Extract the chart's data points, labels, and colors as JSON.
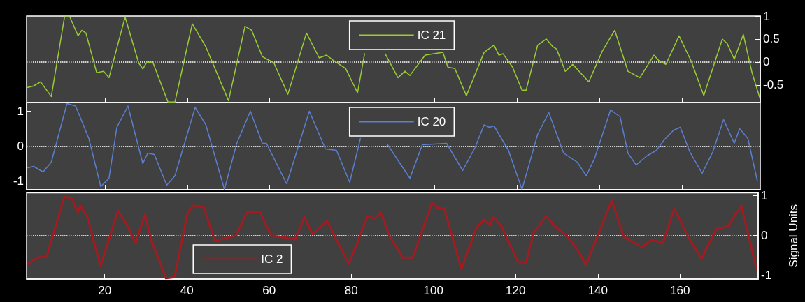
{
  "chart_data": [
    {
      "type": "line",
      "xlim": [
        1,
        179
      ],
      "xticks": [
        20,
        40,
        60,
        80,
        100,
        120,
        140,
        160
      ],
      "y2lim": [
        -0.88,
        1
      ],
      "y2ticks": [
        -0.5,
        0,
        0.5,
        1
      ],
      "tick_labels": "y",
      "legend": "top",
      "ref_lines": [
        {
          "axis": "y2",
          "value": 0,
          "color": "#ffffff",
          "line_style": "dotted"
        }
      ],
      "series": [
        {
          "name": "IC 21",
          "color": "#99cc33",
          "axis": "y2",
          "x": [
            1.3,
            2.7,
            4.4,
            7,
            10.2,
            11.5,
            13.5,
            14.4,
            15.4,
            18,
            19.7,
            21,
            24.9,
            28.2,
            29.2,
            30.2,
            31.7,
            35.3,
            37,
            41.2,
            44.5,
            50,
            54,
            55.6,
            58.2,
            61,
            64.4,
            68.9,
            72,
            73.8,
            75.5,
            78.4,
            81.3,
            83,
            85.5,
            88,
            91.1,
            92.8,
            94,
            97.7,
            102,
            103.2,
            104.9,
            107.7,
            112,
            114.4,
            115.6,
            116.6,
            118.9,
            121.2,
            122.2,
            125,
            127.1,
            128.6,
            129.6,
            131.7,
            133.5,
            137.4,
            140.7,
            143.7,
            146.9,
            149.8,
            153.2,
            154.4,
            156.1,
            159.3,
            162.2,
            165.3,
            169.8,
            171,
            172.7,
            174.9,
            177,
            178.9
          ],
          "values": [
            -0.55,
            -0.52,
            -0.43,
            -0.75,
            0.98,
            0.98,
            0.57,
            0.69,
            0.63,
            -0.23,
            -0.2,
            -0.34,
            0.98,
            -0.02,
            -0.15,
            0,
            -0.02,
            -0.87,
            -0.87,
            0.83,
            0.33,
            -0.84,
            0.78,
            0.69,
            0.12,
            -0.02,
            -0.7,
            0.63,
            0.09,
            0.15,
            0.03,
            -0.14,
            -0.67,
            0.18,
            null,
            0.18,
            -0.34,
            -0.2,
            -0.29,
            0.15,
            0.21,
            -0.11,
            -0.14,
            -0.73,
            0.21,
            0.37,
            0.15,
            0.18,
            -0.11,
            -0.61,
            -0.61,
            0.37,
            0.5,
            0.34,
            0.28,
            -0.2,
            -0.05,
            -0.43,
            0.24,
            0.69,
            -0.2,
            -0.34,
            0.15,
            0.03,
            -0.05,
            0.57,
            0.03,
            -0.73,
            0.5,
            0.4,
            0.06,
            0.6,
            -0.23,
            -0.78
          ]
        }
      ]
    },
    {
      "type": "line",
      "xlim": [
        1,
        179
      ],
      "xticks": [
        20,
        40,
        60,
        80,
        100,
        120,
        140,
        160
      ],
      "ylim": [
        -1.25,
        1.25
      ],
      "yticks": [
        -1,
        0,
        1
      ],
      "tick_labels": "y",
      "legend": "top",
      "ref_lines": [
        {
          "axis": "y",
          "value": 0,
          "color": "#ffffff",
          "line_style": "dotted"
        }
      ],
      "series": [
        {
          "name": "IC 20",
          "color": "#5a7fd0",
          "x": [
            1.3,
            2.7,
            5,
            7,
            10.8,
            12.9,
            16.1,
            19,
            21,
            22.9,
            25.6,
            29.2,
            30.4,
            32,
            35,
            37,
            41.9,
            44.5,
            49,
            52,
            55.3,
            58.2,
            59.2,
            64.1,
            69.6,
            73.5,
            76.2,
            79.4,
            82,
            85.5,
            88.6,
            94,
            97,
            102.9,
            106.8,
            109.8,
            112,
            113.3,
            114.4,
            117.9,
            121.2,
            125,
            127.7,
            131.3,
            134.6,
            136.8,
            138.8,
            142.7,
            145,
            146.9,
            148.9,
            151.5,
            153.8,
            155.7,
            158,
            159.6,
            161.9,
            164.9,
            167.5,
            170.1,
            172.7,
            174,
            176,
            178.3
          ],
          "values": [
            -0.62,
            -0.58,
            -0.74,
            -0.46,
            1.22,
            1.15,
            0.22,
            -1.16,
            -0.92,
            0.54,
            1.15,
            -0.5,
            -0.2,
            -0.24,
            -1.12,
            -0.85,
            1.11,
            0.61,
            -1.24,
            0.08,
            1,
            0.08,
            0.08,
            -1.08,
            1,
            -0.08,
            -0.12,
            -1.04,
            0.22,
            null,
            0.04,
            -0.92,
            0.04,
            0.08,
            -0.7,
            -0.04,
            0.61,
            0.54,
            0.58,
            -0.12,
            -1.24,
            0.34,
            0.96,
            -0.2,
            -0.46,
            -0.85,
            -0.35,
            1.04,
            0.84,
            -0.2,
            -0.54,
            -0.28,
            -0.12,
            0.18,
            0.46,
            0.54,
            -0.16,
            -0.78,
            -0.16,
            0.76,
            0.08,
            0.5,
            0.22,
            -1
          ]
        }
      ]
    },
    {
      "type": "line",
      "xlim": [
        1,
        179
      ],
      "xticks": [
        20,
        40,
        60,
        80,
        100,
        120,
        140,
        160
      ],
      "y2lim": [
        -1.1,
        1.07
      ],
      "y2ticks": [
        -1,
        0,
        1
      ],
      "y2label": "Signal Units",
      "legend": "bottom left",
      "ref_lines": [
        {
          "axis": "y2",
          "value": 0,
          "color": "#ffffff",
          "line_style": "dotted"
        }
      ],
      "series": [
        {
          "name": "IC 2",
          "color": "#a01c20",
          "axis": "y2",
          "x": [
            1.3,
            3.7,
            5.9,
            10.2,
            11.9,
            13.5,
            14.1,
            15.8,
            19,
            23.2,
            25.5,
            27.5,
            29.8,
            31.4,
            34.9,
            37,
            40.2,
            41.6,
            44.1,
            46.8,
            52,
            54.6,
            57.8,
            60.5,
            66.3,
            68.6,
            70.6,
            74.1,
            76.2,
            79.4,
            84,
            85.6,
            87.2,
            89.2,
            92.5,
            95,
            99.6,
            101.3,
            102.6,
            106.8,
            110.4,
            112.3,
            113.7,
            114.6,
            116.6,
            120.5,
            122.5,
            124.4,
            127.4,
            129.6,
            132.3,
            134.9,
            137.1,
            140.7,
            143.4,
            146.3,
            150.8,
            153.1,
            155.8,
            158.6,
            161.6,
            165.2,
            168.8,
            171.6,
            174.9,
            178.6
          ],
          "values": [
            -0.72,
            -0.56,
            -0.53,
            0.97,
            0.94,
            0.58,
            0.75,
            0.46,
            -0.78,
            0.62,
            0.25,
            -0.2,
            0.52,
            -0.14,
            -1.08,
            -1.05,
            0.58,
            0.75,
            0.71,
            -0.14,
            0,
            0.58,
            0.58,
            0,
            -0.1,
            0.46,
            0.03,
            0.36,
            -0.07,
            -0.72,
            0.49,
            0.42,
            0.58,
            0,
            -0.56,
            -0.56,
            0.81,
            0.68,
            0.68,
            -0.85,
            0.19,
            0.39,
            0.25,
            0.46,
            0.22,
            -0.66,
            -0.69,
            0.07,
            0.49,
            0.22,
            0,
            -0.33,
            -0.75,
            0.19,
            0.88,
            -0.03,
            -0.3,
            -0.1,
            -0.2,
            0.68,
            0.03,
            -0.59,
            0.16,
            0.22,
            0.75,
            -0.85
          ]
        }
      ]
    }
  ]
}
